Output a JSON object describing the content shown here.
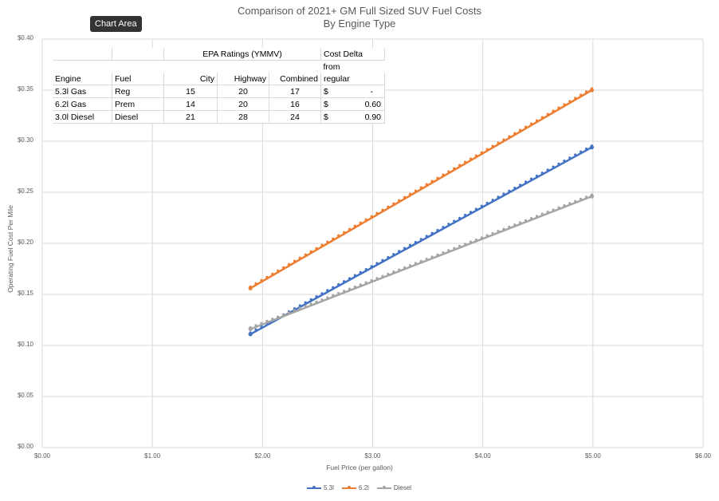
{
  "tooltip": "Chart Area",
  "chart_data": {
    "type": "line",
    "title": "Comparison of 2021+ GM Full Sized SUV Fuel Costs",
    "subtitle": "By Engine Type",
    "xlabel": "Fuel Price (per gallon)",
    "ylabel": "Operating Fuel Cost Per Mile",
    "xlim": [
      0,
      6
    ],
    "ylim": [
      0,
      0.4
    ],
    "x_ticks": [
      "$0.00",
      "$1.00",
      "$2.00",
      "$3.00",
      "$4.00",
      "$5.00",
      "$6.00"
    ],
    "y_ticks": [
      "$0.00",
      "$0.05",
      "$0.10",
      "$0.15",
      "$0.20",
      "$0.25",
      "$0.30",
      "$0.35",
      "$0.40"
    ],
    "grid": true,
    "legend_position": "bottom",
    "series": [
      {
        "name": "5.3l",
        "color": "#4472c4",
        "x_start": 1.89,
        "x_end": 4.99,
        "y_start": 0.111,
        "y_end": 0.294
      },
      {
        "name": "6.2l",
        "color": "#ed7d31",
        "x_start": 1.89,
        "x_end": 4.99,
        "y_start": 0.156,
        "y_end": 0.35
      },
      {
        "name": "Diesel",
        "color": "#a5a5a5",
        "x_start": 1.89,
        "x_end": 4.99,
        "y_start": 0.116,
        "y_end": 0.246
      }
    ]
  },
  "table": {
    "group_header": "EPA Ratings (YMMV)",
    "headers": [
      "Engine",
      "Fuel",
      "City",
      "Highway",
      "Combined"
    ],
    "delta_header": [
      "Cost Delta",
      "from",
      "regular"
    ],
    "rows": [
      {
        "engine": "5.3l Gas",
        "fuel": "Reg",
        "city": "15",
        "highway": "20",
        "combined": "17",
        "cur": "$",
        "delta": "-"
      },
      {
        "engine": "6.2l Gas",
        "fuel": "Prem",
        "city": "14",
        "highway": "20",
        "combined": "16",
        "cur": "$",
        "delta": "0.60"
      },
      {
        "engine": "3.0l Diesel",
        "fuel": "Diesel",
        "city": "21",
        "highway": "28",
        "combined": "24",
        "cur": "$",
        "delta": "0.90"
      }
    ]
  }
}
